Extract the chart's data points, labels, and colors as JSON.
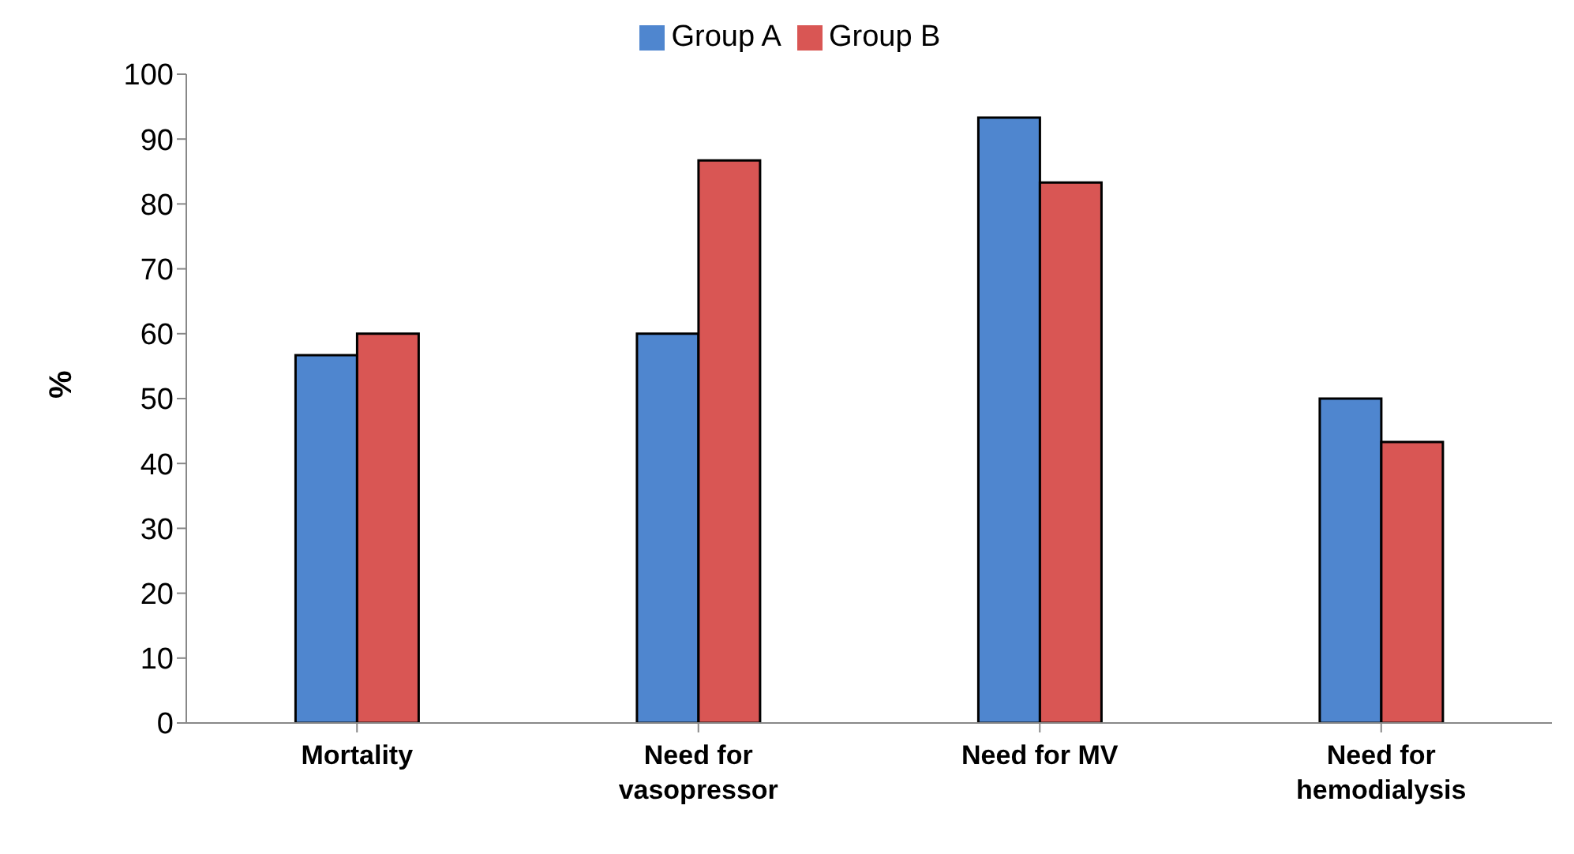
{
  "chart_data": {
    "type": "bar",
    "categories": [
      "Mortality",
      "Need for vasopressor",
      "Need for MV",
      "Need for hemodialysis"
    ],
    "series": [
      {
        "name": "Group A",
        "color": "#4f86cf",
        "values": [
          56.7,
          60,
          93.3,
          50
        ]
      },
      {
        "name": "Group B",
        "color": "#d95654",
        "values": [
          60,
          86.7,
          83.3,
          43.3
        ]
      }
    ],
    "ylabel": "%",
    "ylim": [
      0,
      100
    ],
    "yticks": [
      0,
      10,
      20,
      30,
      40,
      50,
      60,
      70,
      80,
      90,
      100
    ],
    "grid": false,
    "legend": "top"
  }
}
